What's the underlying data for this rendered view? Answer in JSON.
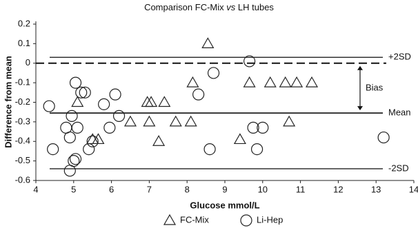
{
  "chart_data": {
    "type": "scatter",
    "title": [
      "Comparison FC-Mix",
      "vs",
      "LH tubes"
    ],
    "x_label": "Glucose mmol/L",
    "y_label": "Difference from mean",
    "xlim": [
      4,
      14
    ],
    "ylim": [
      -0.6,
      0.2
    ],
    "xticks": [
      4,
      5,
      6,
      7,
      8,
      9,
      10,
      11,
      12,
      13,
      14
    ],
    "yticks": [
      -0.6,
      -0.5,
      -0.4,
      -0.3,
      -0.2,
      -0.1,
      0,
      0.1,
      0.2
    ],
    "series": [
      {
        "name": "FC-Mix",
        "marker": "triangle",
        "color": "#222222",
        "x": [
          8.55,
          5.1,
          6.95,
          7.05,
          7.4,
          8.15,
          9.65,
          10.2,
          10.6,
          10.9,
          11.3,
          5.5,
          5.65,
          6.5,
          7.0,
          7.25,
          7.7,
          8.1,
          9.4,
          10.7
        ],
        "values": [
          0.1,
          -0.2,
          -0.2,
          -0.2,
          -0.2,
          -0.1,
          -0.1,
          -0.1,
          -0.1,
          -0.1,
          -0.1,
          -0.39,
          -0.39,
          -0.3,
          -0.3,
          -0.4,
          -0.3,
          -0.3,
          -0.39,
          -0.3
        ]
      },
      {
        "name": "Li-Hep",
        "marker": "circle",
        "color": "#222222",
        "x": [
          4.35,
          4.45,
          4.8,
          4.9,
          4.9,
          4.95,
          5.0,
          5.05,
          5.05,
          5.1,
          5.2,
          5.3,
          5.4,
          5.5,
          5.8,
          5.95,
          6.1,
          6.2,
          8.3,
          8.6,
          8.7,
          9.65,
          9.75,
          9.85,
          10.0,
          13.2
        ],
        "values": [
          -0.22,
          -0.44,
          -0.33,
          -0.55,
          -0.38,
          -0.27,
          -0.5,
          -0.1,
          -0.49,
          -0.33,
          -0.15,
          -0.15,
          -0.44,
          -0.4,
          -0.21,
          -0.33,
          -0.16,
          -0.27,
          -0.16,
          -0.44,
          -0.05,
          0.01,
          -0.33,
          -0.44,
          -0.33,
          -0.38
        ]
      }
    ],
    "zero_line": 0,
    "reference_lines": [
      {
        "label": "+2SD",
        "value": 0.03
      },
      {
        "label": "Mean",
        "value": -0.255
      },
      {
        "label": "-2SD",
        "value": -0.54
      }
    ],
    "bias_label": "Bias"
  }
}
